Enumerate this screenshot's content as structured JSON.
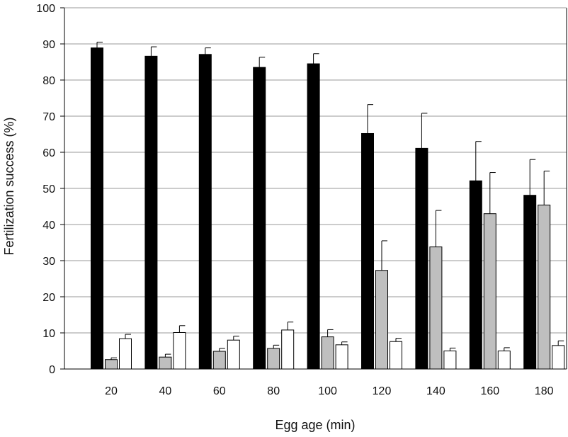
{
  "chart_data": {
    "type": "bar",
    "xlabel": "Egg age (min)",
    "ylabel": "Fertilization success (%)",
    "ylim": [
      0,
      100
    ],
    "yticks": [
      0,
      10,
      20,
      30,
      40,
      50,
      60,
      70,
      80,
      90,
      100
    ],
    "grid": "horizontal",
    "categories": [
      "20",
      "40",
      "60",
      "80",
      "100",
      "120",
      "140",
      "160",
      "180"
    ],
    "series": [
      {
        "color": "#000000",
        "values": [
          88.9,
          86.6,
          87.1,
          83.5,
          84.5,
          65.2,
          61.1,
          52.1,
          48.1
        ],
        "errors": [
          1.6,
          2.6,
          1.8,
          2.8,
          2.8,
          8.0,
          9.7,
          10.9,
          9.9
        ]
      },
      {
        "color": "#bfbfbf",
        "values": [
          2.6,
          3.3,
          4.9,
          5.7,
          8.9,
          27.3,
          33.8,
          43.0,
          45.4
        ],
        "errors": [
          0.5,
          0.8,
          0.8,
          0.9,
          2.0,
          8.2,
          10.1,
          11.4,
          9.4
        ]
      },
      {
        "color": "#ffffff",
        "values": [
          8.4,
          10.1,
          8.0,
          10.8,
          6.7,
          7.6,
          5.0,
          5.0,
          6.5
        ],
        "errors": [
          1.2,
          1.9,
          1.1,
          2.2,
          0.8,
          0.9,
          0.8,
          0.9,
          1.3
        ]
      }
    ]
  }
}
